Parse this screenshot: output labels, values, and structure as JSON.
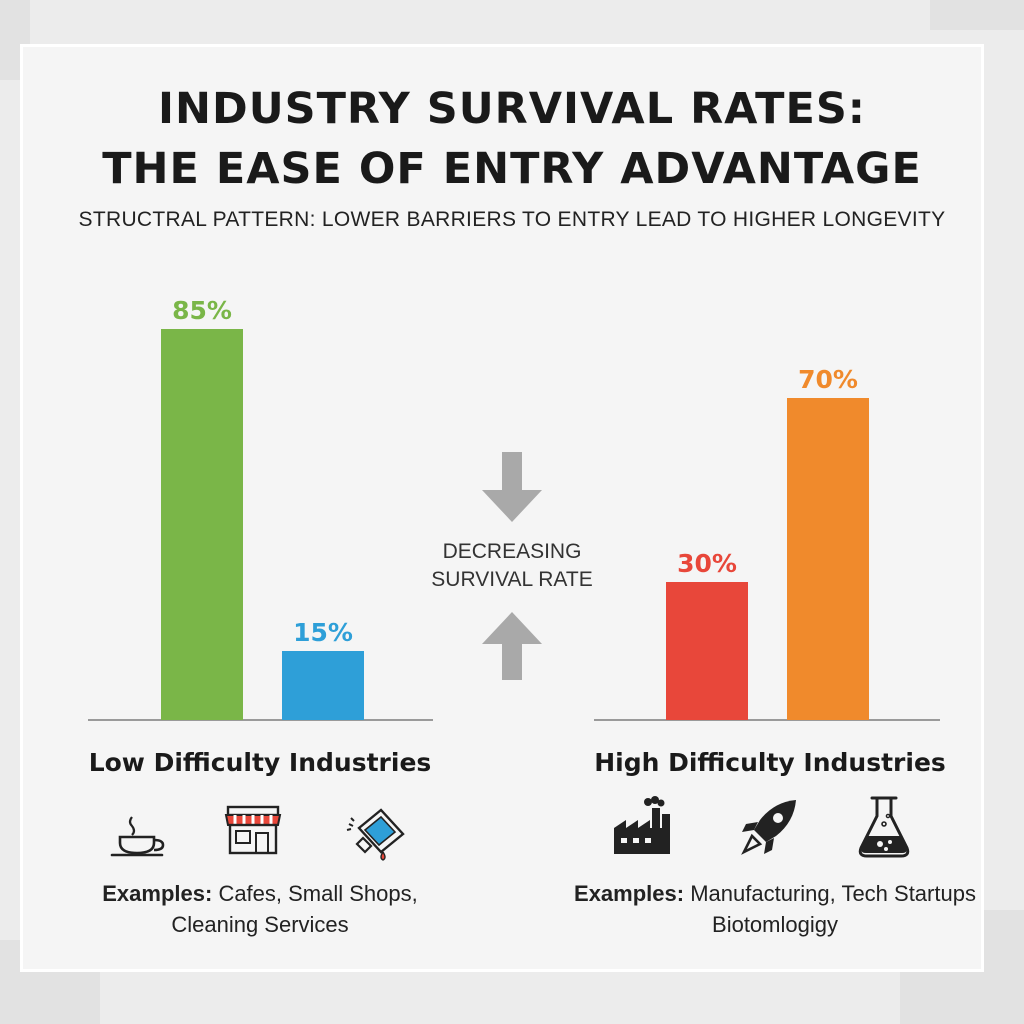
{
  "header": {
    "title_line1": "INDUSTRY SURVIVAL RATES:",
    "title_line2": "THE EASE OF ENTRY ADVANTAGE",
    "subtitle": "STRUCTRAL PATTERN: LOWER BARRIERS TO ENTRY LEAD TO HIGHER LONGEVITY"
  },
  "middle": {
    "line1": "DECREASING",
    "line2": "SURVIVAL RATE"
  },
  "groups": [
    {
      "title": "Low Difficulty Industries",
      "examples_label": "Examples:",
      "examples_line1": "Cafes, Small Shops,",
      "examples_line2": "Cleaning Services",
      "icons": [
        "coffee-cup-icon",
        "storefront-icon",
        "cleaning-spray-icon"
      ]
    },
    {
      "title": "High Difficulty Industries",
      "examples_label": "Examples:",
      "examples_line1": "Manufacturing, Tech Startups",
      "examples_line2": "Biotomlogigy",
      "icons": [
        "factory-icon",
        "rocket-icon",
        "flask-icon"
      ]
    }
  ],
  "chart_data": {
    "type": "bar",
    "title": "INDUSTRY SURVIVAL RATES: THE EASE OF ENTRY ADVANTAGE",
    "xlabel": "",
    "ylabel": "",
    "ylim": [
      0,
      100
    ],
    "bars": [
      {
        "group": "Low Difficulty Industries",
        "value": 85,
        "label": "85%",
        "color": "#7ab648"
      },
      {
        "group": "Low Difficulty Industries",
        "value": 15,
        "label": "15%",
        "color": "#2e9fd8"
      },
      {
        "group": "High Difficulty Industries",
        "value": 30,
        "label": "30%",
        "color": "#e8473a"
      },
      {
        "group": "High Difficulty Industries",
        "value": 70,
        "label": "70%",
        "color": "#f08a2c"
      }
    ]
  }
}
